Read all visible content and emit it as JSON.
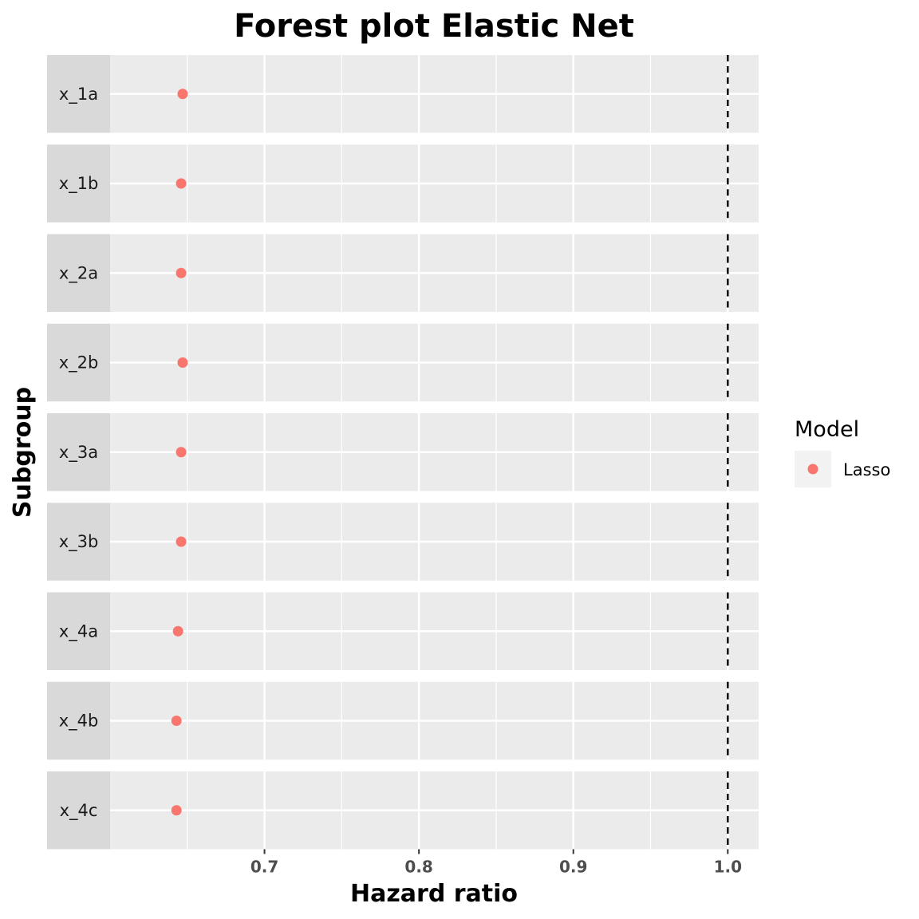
{
  "chart_data": {
    "type": "scatter",
    "title": "Forest plot Elastic Net",
    "xlabel": "Hazard ratio",
    "ylabel": "Subgroup",
    "xlim": [
      0.6,
      1.02
    ],
    "x_ticks": [
      0.7,
      0.8,
      0.9,
      1.0
    ],
    "x_tick_labels": [
      "0.7",
      "0.8",
      "0.9",
      "1.0"
    ],
    "reference_line": 1.0,
    "categories": [
      "x_1a",
      "x_1b",
      "x_2a",
      "x_2b",
      "x_3a",
      "x_3b",
      "x_4a",
      "x_4b",
      "x_4c"
    ],
    "series": [
      {
        "name": "Lasso",
        "color": "#F8766D",
        "values": [
          0.647,
          0.646,
          0.646,
          0.647,
          0.646,
          0.646,
          0.644,
          0.643,
          0.643
        ]
      }
    ],
    "legend": {
      "title": "Model",
      "position": "right"
    },
    "grid": true,
    "panel_background": "#EBEBEB",
    "strip_background": "#D9D9D9"
  }
}
